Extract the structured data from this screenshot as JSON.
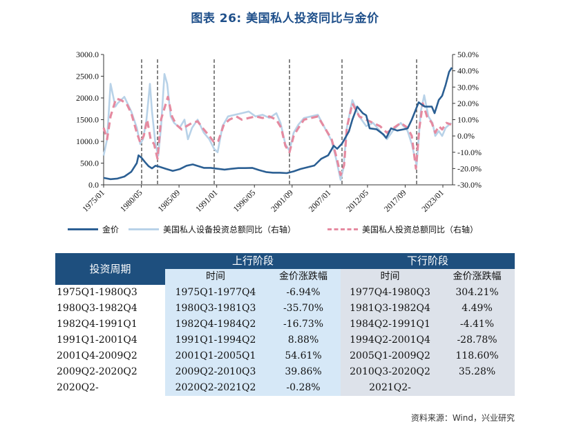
{
  "title": "图表 26: 美国私人投资同比与金价",
  "source": "资料来源：Wind，兴业研究",
  "colors": {
    "gold": "#2b5f93",
    "equip": "#b8d2e8",
    "total": "#e58aa0",
    "header": "#1e4f7e",
    "upBg": "#d6e8f7",
    "downBg": "#dde2ea"
  },
  "chart_data": {
    "type": "line",
    "x_tick_labels": [
      "1975/01",
      "1980/05",
      "1985/09",
      "1991/01",
      "1996/05",
      "2001/09",
      "2007/01",
      "2012/05",
      "2017/09",
      "2023/01"
    ],
    "x_range": [
      1975.0,
      2025.5
    ],
    "y_left": {
      "ticks": [
        "0.0",
        "500.0",
        "1000.0",
        "1500.0",
        "2000.0",
        "2500.0",
        "3000.0"
      ],
      "range": [
        0,
        3000
      ]
    },
    "y_right": {
      "ticks": [
        "-30.0%",
        "-20.0%",
        "-10.0%",
        "0.0%",
        "10.0%",
        "20.0%",
        "30.0%",
        "40.0%",
        "50.0%"
      ],
      "range": [
        -30,
        50
      ]
    },
    "vlines": [
      1980.5,
      1982.8,
      1991.0,
      2001.9,
      2009.5,
      2020.3
    ],
    "series": [
      {
        "name": "金价",
        "axis": "left",
        "style": "solid-thick",
        "x": [
          1975.0,
          1976.0,
          1977.0,
          1978.0,
          1979.0,
          1979.8,
          1980.05,
          1980.5,
          1981.0,
          1981.5,
          1982.0,
          1982.5,
          1983.0,
          1984.0,
          1985.0,
          1986.0,
          1987.0,
          1987.9,
          1988.5,
          1989.5,
          1990.5,
          1991.5,
          1992.5,
          1993.5,
          1994.5,
          1995.5,
          1996.5,
          1997.5,
          1998.5,
          1999.5,
          2000.5,
          2001.5,
          2002.5,
          2003.5,
          2004.5,
          2005.5,
          2006.5,
          2007.5,
          2008.3,
          2008.8,
          2009.5,
          2010.5,
          2011.0,
          2011.7,
          2012.5,
          2013.0,
          2013.5,
          2014.5,
          2015.5,
          2015.9,
          2016.6,
          2017.5,
          2018.5,
          2019.0,
          2019.6,
          2020.6,
          2021.0,
          2021.5,
          2022.5,
          2022.9,
          2023.5,
          2024.0,
          2024.5,
          2025.0,
          2025.4
        ],
        "y": [
          160,
          130,
          145,
          190,
          300,
          500,
          680,
          620,
          520,
          430,
          380,
          440,
          420,
          370,
          320,
          360,
          440,
          470,
          440,
          390,
          390,
          370,
          350,
          370,
          385,
          385,
          390,
          340,
          295,
          280,
          280,
          270,
          310,
          365,
          405,
          445,
          600,
          680,
          900,
          830,
          950,
          1230,
          1500,
          1800,
          1650,
          1600,
          1300,
          1280,
          1160,
          1080,
          1300,
          1250,
          1280,
          1300,
          1500,
          1900,
          1850,
          1800,
          1800,
          1650,
          1950,
          2050,
          2300,
          2600,
          2700
        ]
      },
      {
        "name": "美国私人设备投资总额同比（右轴）",
        "axis": "right",
        "style": "solid-light",
        "x": [
          1975.0,
          1975.5,
          1976.0,
          1976.7,
          1977.0,
          1978.0,
          1979.0,
          1979.8,
          1980.3,
          1980.7,
          1981.2,
          1981.7,
          1982.0,
          1982.5,
          1982.9,
          1983.3,
          1983.8,
          1984.2,
          1984.7,
          1985.2,
          1986.0,
          1986.7,
          1987.2,
          1987.8,
          1988.6,
          1989.5,
          1990.3,
          1991.0,
          1991.5,
          1992.2,
          1993.0,
          1994.0,
          1995.0,
          1996.0,
          1997.0,
          1998.0,
          1999.0,
          2000.0,
          2000.6,
          2001.3,
          2001.9,
          2002.5,
          2003.2,
          2004.0,
          2005.0,
          2006.0,
          2007.0,
          2008.0,
          2008.7,
          2009.3,
          2009.7,
          2010.2,
          2011.0,
          2012.0,
          2013.0,
          2014.0,
          2015.0,
          2016.0,
          2017.0,
          2018.0,
          2019.0,
          2019.6,
          2020.3,
          2020.9,
          2021.4,
          2022.0,
          2022.6,
          2023.0,
          2023.5,
          2024.0,
          2024.5,
          2025.3
        ],
        "y": [
          -12,
          -2,
          32,
          18,
          20,
          24,
          15,
          5,
          -5,
          -2,
          10,
          32,
          15,
          -5,
          -12,
          5,
          38,
          32,
          12,
          8,
          5,
          10,
          -2,
          5,
          10,
          2,
          -2,
          -8,
          -10,
          6,
          12,
          13,
          14,
          15,
          12,
          13,
          11,
          14,
          8,
          -5,
          -9,
          2,
          7,
          11,
          12,
          13,
          5,
          -3,
          -15,
          -27,
          -20,
          5,
          22,
          12,
          6,
          8,
          3,
          -2,
          4,
          8,
          3,
          -5,
          -18,
          15,
          25,
          12,
          8,
          0,
          3,
          0,
          5,
          8
        ]
      },
      {
        "name": "美国私人投资总额同比（右轴）",
        "axis": "right",
        "style": "dashed",
        "x": [
          1975.0,
          1975.5,
          1976.0,
          1976.8,
          1977.5,
          1978.3,
          1979.0,
          1979.8,
          1980.3,
          1980.8,
          1981.3,
          1981.8,
          1982.3,
          1982.8,
          1983.3,
          1983.8,
          1984.3,
          1984.9,
          1985.5,
          1986.3,
          1987.0,
          1987.8,
          1988.6,
          1989.5,
          1990.3,
          1991.0,
          1991.6,
          1992.4,
          1993.2,
          1994.2,
          1995.0,
          1996.0,
          1997.0,
          1998.0,
          1999.0,
          2000.0,
          2000.7,
          2001.3,
          2001.9,
          2002.5,
          2003.2,
          2004.0,
          2005.0,
          2006.0,
          2007.0,
          2008.0,
          2008.7,
          2009.3,
          2009.8,
          2010.2,
          2011.0,
          2012.0,
          2013.0,
          2014.0,
          2015.0,
          2016.0,
          2017.0,
          2018.0,
          2019.0,
          2019.6,
          2020.2,
          2020.7,
          2021.2,
          2021.8,
          2022.5,
          2023.0,
          2023.5,
          2024.0,
          2024.6,
          2025.3
        ],
        "y": [
          5,
          -2,
          12,
          23,
          22,
          20,
          14,
          2,
          -4,
          0,
          10,
          -2,
          -5,
          -14,
          10,
          17,
          24,
          12,
          7,
          4,
          6,
          8,
          9,
          4,
          0,
          -4,
          -3,
          7,
          10,
          12,
          10,
          11,
          12,
          11,
          12,
          10,
          5,
          -6,
          -10,
          0,
          5,
          10,
          11,
          12,
          5,
          -2,
          -13,
          -24,
          -18,
          5,
          20,
          12,
          10,
          8,
          6,
          2,
          5,
          8,
          5,
          0,
          -20,
          5,
          20,
          12,
          8,
          2,
          6,
          4,
          8,
          7
        ]
      }
    ]
  },
  "table": {
    "period_header": "投资周期",
    "up_header": "上行阶段",
    "down_header": "下行阶段",
    "sub_headers": {
      "time": "时间",
      "change": "金价涨跌幅"
    },
    "rows": [
      {
        "period": "1975Q1-1980Q3",
        "up_time": "1975Q1-1977Q4",
        "up_chg": "-6.94%",
        "down_time": "1977Q4-1980Q3",
        "down_chg": "304.21%"
      },
      {
        "period": "1980Q3-1982Q4",
        "up_time": "1980Q3-1981Q3",
        "up_chg": "-35.70%",
        "down_time": "1981Q3-1982Q4",
        "down_chg": "4.49%"
      },
      {
        "period": "1982Q4-1991Q1",
        "up_time": "1982Q4-1984Q2",
        "up_chg": "-16.73%",
        "down_time": "1984Q2-1991Q1",
        "down_chg": "-4.41%"
      },
      {
        "period": "1991Q1-2001Q4",
        "up_time": "1991Q1-1994Q2",
        "up_chg": "8.88%",
        "down_time": "1994Q2-2001Q4",
        "down_chg": "-28.78%"
      },
      {
        "period": "2001Q4-2009Q2",
        "up_time": "2001Q1-2005Q1",
        "up_chg": "54.61%",
        "down_time": "2005Q1-2009Q2",
        "down_chg": "118.60%"
      },
      {
        "period": "2009Q2-2020Q2",
        "up_time": "2009Q2-2010Q3",
        "up_chg": "39.86%",
        "down_time": "2010Q3-2020Q2",
        "down_chg": "35.28%"
      },
      {
        "period": "2020Q2-",
        "up_time": "2020Q2-2021Q2",
        "up_chg": "-0.28%",
        "down_time": "2021Q2-",
        "down_chg": ""
      }
    ]
  }
}
